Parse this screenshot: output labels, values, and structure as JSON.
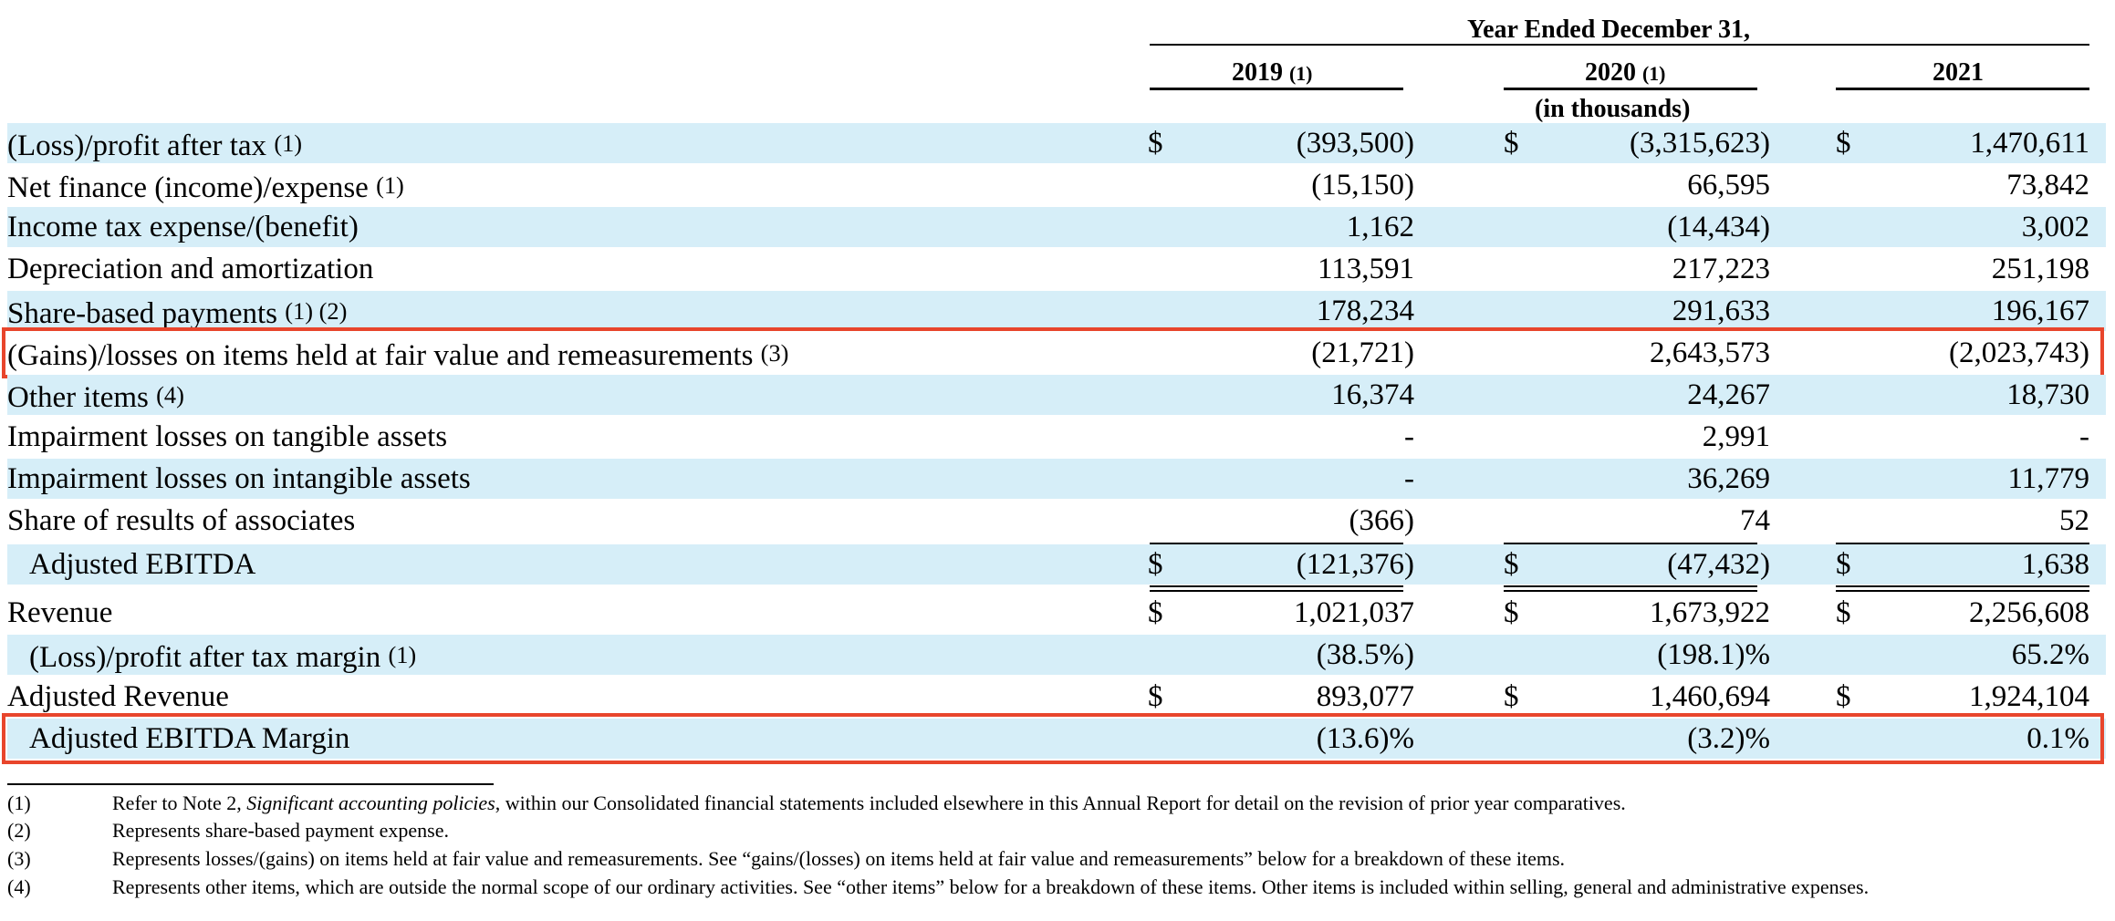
{
  "header": {
    "period_title": "Year Ended December 31,",
    "columns": [
      {
        "year": "2019",
        "note": "(1)"
      },
      {
        "year": "2020",
        "note": "(1)"
      },
      {
        "year": "2021",
        "note": ""
      }
    ],
    "units": "(in thousands)"
  },
  "rows": [
    {
      "label": "(Loss)/profit after tax",
      "note": "(1)",
      "indent": false,
      "band": true,
      "dollar": true,
      "values": [
        "(393,500)",
        "(3,315,623)",
        "1,470,611"
      ]
    },
    {
      "label": "Net finance (income)/expense",
      "note": "(1)",
      "indent": false,
      "band": false,
      "dollar": false,
      "values": [
        "(15,150)",
        "66,595",
        "73,842"
      ]
    },
    {
      "label": "Income tax expense/(benefit)",
      "note": "",
      "indent": false,
      "band": true,
      "dollar": false,
      "values": [
        "1,162",
        "(14,434)",
        "3,002"
      ]
    },
    {
      "label": "Depreciation and amortization",
      "note": "",
      "indent": false,
      "band": false,
      "dollar": false,
      "values": [
        "113,591",
        "217,223",
        "251,198"
      ]
    },
    {
      "label": "Share-based payments",
      "note": "(1) (2)",
      "indent": false,
      "band": true,
      "dollar": false,
      "values": [
        "178,234",
        "291,633",
        "196,167"
      ]
    },
    {
      "label": "(Gains)/losses on items held at fair value and remeasurements",
      "note": "(3)",
      "indent": false,
      "band": false,
      "dollar": false,
      "highlight": true,
      "values": [
        "(21,721)",
        "2,643,573",
        "(2,023,743)"
      ]
    },
    {
      "label": "Other items",
      "note": "(4)",
      "indent": false,
      "band": true,
      "dollar": false,
      "values": [
        "16,374",
        "24,267",
        "18,730"
      ]
    },
    {
      "label": "Impairment losses on tangible assets",
      "note": "",
      "indent": false,
      "band": false,
      "dollar": false,
      "values": [
        "-",
        "2,991",
        "-"
      ]
    },
    {
      "label": "Impairment losses on intangible assets",
      "note": "",
      "indent": false,
      "band": true,
      "dollar": false,
      "values": [
        "-",
        "36,269",
        "11,779"
      ]
    },
    {
      "label": "Share of results of associates",
      "note": "",
      "indent": false,
      "band": false,
      "dollar": false,
      "values": [
        "(366)",
        "74",
        "52"
      ]
    },
    {
      "label": "Adjusted EBITDA",
      "note": "",
      "indent": true,
      "band": true,
      "dollar": true,
      "total": true,
      "values": [
        "(121,376)",
        "(47,432)",
        "1,638"
      ]
    },
    {
      "label": "Revenue",
      "note": "",
      "indent": false,
      "band": false,
      "dollar": true,
      "values": [
        "1,021,037",
        "1,673,922",
        "2,256,608"
      ]
    },
    {
      "label": "(Loss)/profit after tax margin",
      "note": "(1)",
      "indent": true,
      "band": true,
      "dollar": false,
      "values": [
        "(38.5%)",
        "(198.1)%",
        "65.2%"
      ]
    },
    {
      "label": "Adjusted Revenue",
      "note": "",
      "indent": false,
      "band": false,
      "dollar": true,
      "values": [
        "893,077",
        "1,460,694",
        "1,924,104"
      ]
    },
    {
      "label": "Adjusted EBITDA Margin",
      "note": "",
      "indent": true,
      "band": true,
      "dollar": false,
      "highlight": true,
      "values": [
        "(13.6)%",
        "(3.2)%",
        "0.1%"
      ]
    }
  ],
  "dollar_sign": "$",
  "footnotes": [
    {
      "num": "(1)",
      "text_before": "Refer to Note 2, ",
      "text_italic": "Significant accounting policies",
      "text_after": ", within our Consolidated financial statements included elsewhere in this Annual Report for detail on the revision of prior year comparatives."
    },
    {
      "num": "(2)",
      "text_before": "Represents share-based payment expense.",
      "text_italic": "",
      "text_after": ""
    },
    {
      "num": "(3)",
      "text_before": "Represents losses/(gains) on items held at fair value and remeasurements. See “gains/(losses) on items held at fair value and remeasurements” below for a breakdown of these items.",
      "text_italic": "",
      "text_after": ""
    },
    {
      "num": "(4)",
      "text_before": "Represents other items, which are outside the normal scope of our ordinary activities. See “other items” below for a breakdown of these items. Other items is included within selling, general and administrative expenses.",
      "text_italic": "",
      "text_after": ""
    }
  ],
  "colors": {
    "band": "#d6eef8",
    "highlight_border": "#e8452c"
  }
}
